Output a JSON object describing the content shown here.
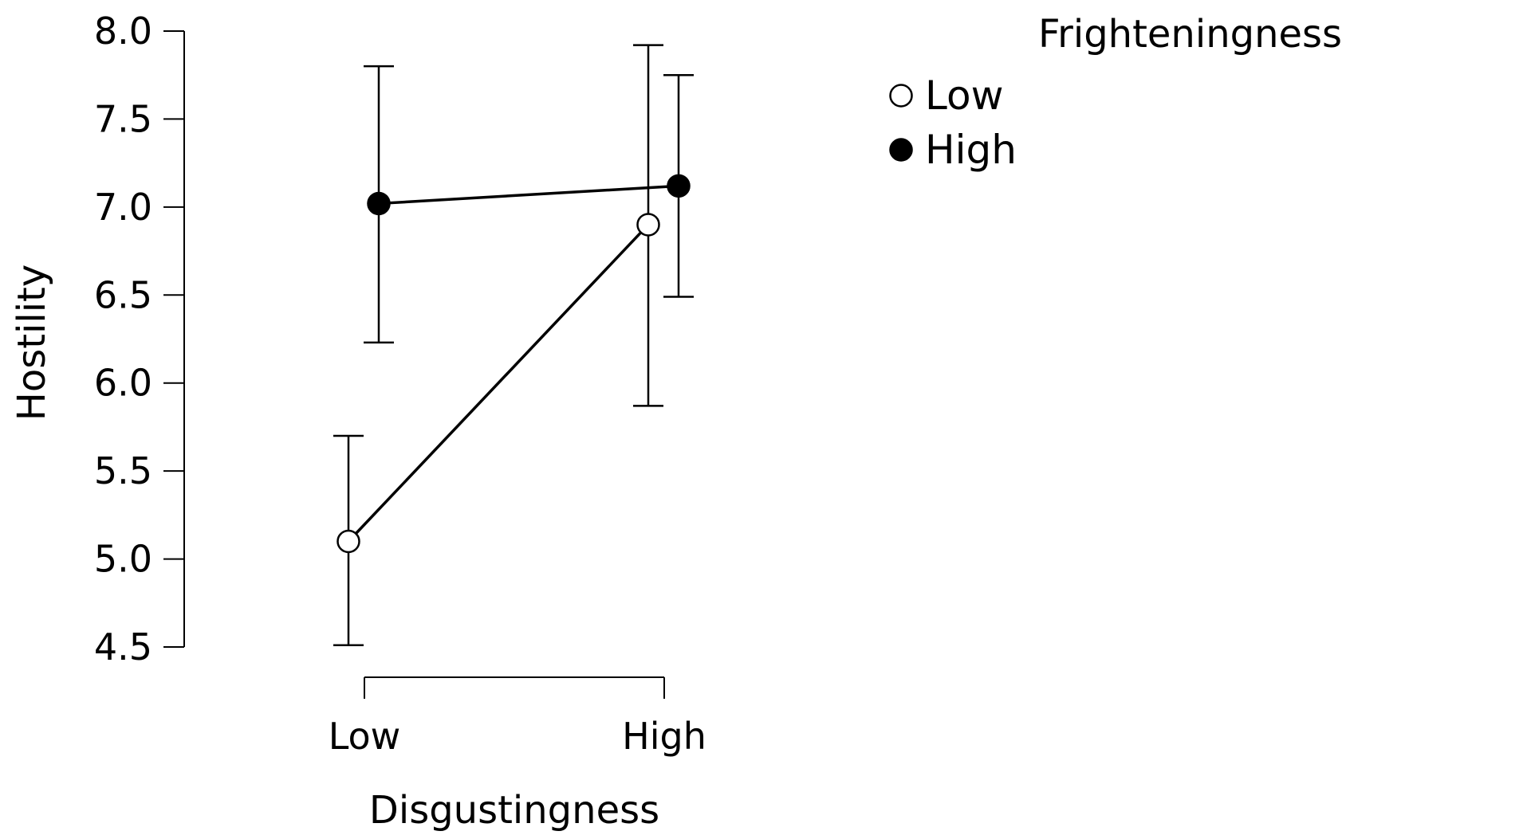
{
  "chart_data": {
    "type": "line",
    "title": "",
    "xlabel": "Disgustingness",
    "ylabel": "Hostility",
    "categories": [
      "Low",
      "High"
    ],
    "ylim": [
      4.5,
      8.0
    ],
    "yticks": [
      "4.5",
      "5.0",
      "5.5",
      "6.0",
      "6.5",
      "7.0",
      "7.5",
      "8.0"
    ],
    "grid": false,
    "legend": {
      "title": "Frighteningness",
      "placement": "top-right"
    },
    "series": [
      {
        "name": "Low",
        "marker": "open-circle",
        "color": "#000000",
        "values": [
          5.1,
          6.9
        ],
        "error_low": [
          4.51,
          5.87
        ],
        "error_high": [
          5.7,
          7.92
        ]
      },
      {
        "name": "High",
        "marker": "filled-circle",
        "color": "#000000",
        "values": [
          7.02,
          7.12
        ],
        "error_low": [
          6.23,
          6.49
        ],
        "error_high": [
          7.8,
          7.75
        ]
      }
    ]
  }
}
